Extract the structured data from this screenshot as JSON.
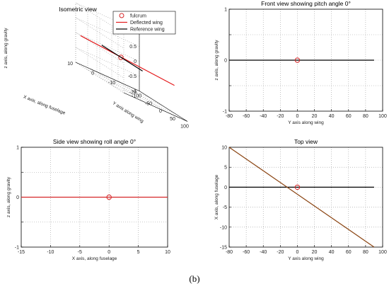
{
  "figure": {
    "caption": "(b)"
  },
  "chart_data": [
    {
      "id": "iso",
      "type": "line",
      "projection": "3d-isometric",
      "title": "Isometric view",
      "xlabel": "Y axis along wing",
      "ylabel": "X axis, along fuselage",
      "zlabel": "z axis, along gravity",
      "x_ticks": [
        -100,
        -50,
        0,
        50,
        100
      ],
      "y_ticks": [
        -20,
        -10,
        0,
        10
      ],
      "z_ticks": [
        -1,
        -0.5,
        0,
        0.5,
        1
      ],
      "x_tick_labels": [
        "-100",
        "-50",
        "0",
        "50",
        "100"
      ],
      "y_tick_labels": [
        "-20",
        "-10",
        "0",
        "10"
      ],
      "z_tick_labels": [
        "-1",
        "-0.5",
        "0",
        "0.5",
        "1"
      ],
      "xlim": [
        -100,
        100
      ],
      "ylim": [
        -20,
        10
      ],
      "zlim": [
        -1,
        1
      ],
      "grid": true,
      "legend": "top-right",
      "series": [
        {
          "name": "fulcrum",
          "marker": "circle",
          "color": "#d62728",
          "points": [
            [
              0,
              0,
              0
            ]
          ]
        },
        {
          "name": "Deflected wing",
          "color": "#e41a1c",
          "points": [
            [
              -80,
              10,
              0
            ],
            [
              90,
              -15,
              0
            ]
          ]
        },
        {
          "name": "Reference wing",
          "color": "#000000",
          "points": [
            [
              -80,
              0,
              0
            ],
            [
              90,
              0,
              0
            ]
          ]
        }
      ]
    },
    {
      "id": "front",
      "type": "line",
      "title": "Front view showing pitch angle 0°",
      "xlabel": "Y axis along wing",
      "ylabel": "z axis, along gravity",
      "xlim": [
        -80,
        100
      ],
      "ylim": [
        -1,
        1
      ],
      "x_ticks": [
        -80,
        -60,
        -40,
        -20,
        0,
        20,
        40,
        60,
        80,
        100
      ],
      "y_ticks": [
        -1,
        -0.5,
        0,
        0.5,
        1
      ],
      "x_tick_labels": [
        "-80",
        "-60",
        "-40",
        "-20",
        "0",
        "20",
        "40",
        "60",
        "80",
        "100"
      ],
      "y_tick_labels": [
        "-1",
        "",
        "0",
        "",
        "1"
      ],
      "grid": true,
      "series": [
        {
          "color": "#000000",
          "x": [
            -80,
            90
          ],
          "y": [
            0,
            0
          ]
        },
        {
          "color": "#d62728",
          "marker": "circle",
          "x": [
            0
          ],
          "y": [
            0
          ]
        }
      ]
    },
    {
      "id": "side",
      "type": "line",
      "title": "Side view showing roll angle 0°",
      "xlabel": "X axis, along fuselage",
      "ylabel": "z axis, along gravity",
      "xlim": [
        -15,
        10
      ],
      "ylim": [
        -1,
        1
      ],
      "x_ticks": [
        -15,
        -10,
        -5,
        0,
        5,
        10
      ],
      "y_ticks": [
        -1,
        -0.5,
        0,
        0.5,
        1
      ],
      "x_tick_labels": [
        "-15",
        "-10",
        "-5",
        "0",
        "5",
        "10"
      ],
      "y_tick_labels": [
        "-1",
        "",
        "0",
        "",
        "1"
      ],
      "grid": true,
      "series": [
        {
          "color": "#d62728",
          "x": [
            -15,
            10
          ],
          "y": [
            0,
            0
          ]
        },
        {
          "color": "#d62728",
          "marker": "circle",
          "x": [
            0
          ],
          "y": [
            0
          ]
        }
      ]
    },
    {
      "id": "top",
      "type": "line",
      "title": "Top view",
      "xlabel": "Y axis along wing",
      "ylabel": "X axis, along fuselage",
      "xlim": [
        -80,
        100
      ],
      "ylim": [
        -15,
        10
      ],
      "x_ticks": [
        -80,
        -60,
        -40,
        -20,
        0,
        20,
        40,
        60,
        80,
        100
      ],
      "y_ticks": [
        -15,
        -10,
        -5,
        0,
        5,
        10
      ],
      "x_tick_labels": [
        "-80",
        "-60",
        "-40",
        "-20",
        "0",
        "20",
        "40",
        "60",
        "80",
        "100"
      ],
      "y_tick_labels": [
        "-15",
        "-10",
        "-5",
        "0",
        "5",
        "10"
      ],
      "grid": true,
      "series": [
        {
          "color": "#000000",
          "x": [
            -80,
            90
          ],
          "y": [
            0,
            0
          ]
        },
        {
          "color": "#8b4513",
          "x": [
            -80,
            90
          ],
          "y": [
            10,
            -15
          ]
        },
        {
          "color": "#d62728",
          "marker": "circle",
          "x": [
            0
          ],
          "y": [
            0
          ]
        }
      ]
    }
  ]
}
